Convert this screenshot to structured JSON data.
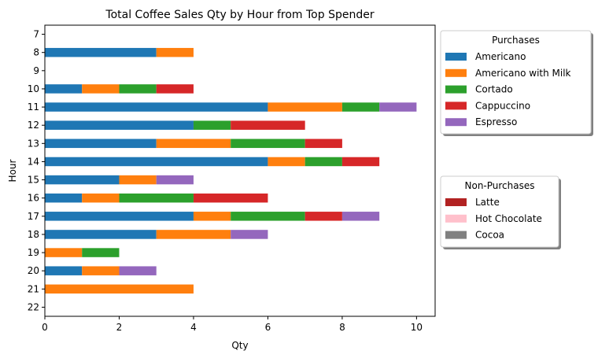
{
  "chart_data": {
    "type": "bar",
    "orientation": "horizontal",
    "stacked": true,
    "title": "Total Coffee Sales Qty by Hour from Top Spender",
    "xlabel": "Qty",
    "ylabel": "Hour",
    "xlim": [
      0,
      10.5
    ],
    "xticks": [
      0,
      2,
      4,
      6,
      8,
      10
    ],
    "categories": [
      "7",
      "8",
      "9",
      "10",
      "11",
      "12",
      "13",
      "14",
      "15",
      "16",
      "17",
      "18",
      "19",
      "20",
      "21",
      "22"
    ],
    "series": [
      {
        "name": "Americano",
        "color": "#1f77b4",
        "values": [
          0,
          3,
          0,
          1,
          6,
          4,
          3,
          6,
          2,
          1,
          4,
          3,
          0,
          1,
          0,
          0
        ]
      },
      {
        "name": "Americano with Milk",
        "color": "#ff7f0e",
        "values": [
          0,
          1,
          0,
          1,
          2,
          0,
          2,
          1,
          1,
          1,
          1,
          2,
          1,
          1,
          4,
          0
        ]
      },
      {
        "name": "Cortado",
        "color": "#2ca02c",
        "values": [
          0,
          0,
          0,
          1,
          1,
          1,
          2,
          1,
          0,
          2,
          2,
          0,
          1,
          0,
          0,
          0
        ]
      },
      {
        "name": "Cappuccino",
        "color": "#d62728",
        "values": [
          0,
          0,
          0,
          1,
          0,
          2,
          1,
          1,
          0,
          2,
          1,
          0,
          0,
          0,
          0,
          0
        ]
      },
      {
        "name": "Espresso",
        "color": "#9467bd",
        "values": [
          0,
          0,
          0,
          0,
          1,
          0,
          0,
          0,
          1,
          0,
          1,
          1,
          0,
          1,
          0,
          0
        ]
      }
    ],
    "legends": [
      {
        "title": "Purchases",
        "placement": "upper-right-outside",
        "entries": [
          {
            "label": "Americano",
            "color": "#1f77b4"
          },
          {
            "label": "Americano with Milk",
            "color": "#ff7f0e"
          },
          {
            "label": "Cortado",
            "color": "#2ca02c"
          },
          {
            "label": "Cappuccino",
            "color": "#d62728"
          },
          {
            "label": "Espresso",
            "color": "#9467bd"
          }
        ]
      },
      {
        "title": "Non-Purchases",
        "placement": "center-right-outside",
        "entries": [
          {
            "label": "Latte",
            "color": "#b22222"
          },
          {
            "label": "Hot Chocolate",
            "color": "#ffc0cb"
          },
          {
            "label": "Cocoa",
            "color": "#808080"
          }
        ]
      }
    ],
    "grid": false
  }
}
